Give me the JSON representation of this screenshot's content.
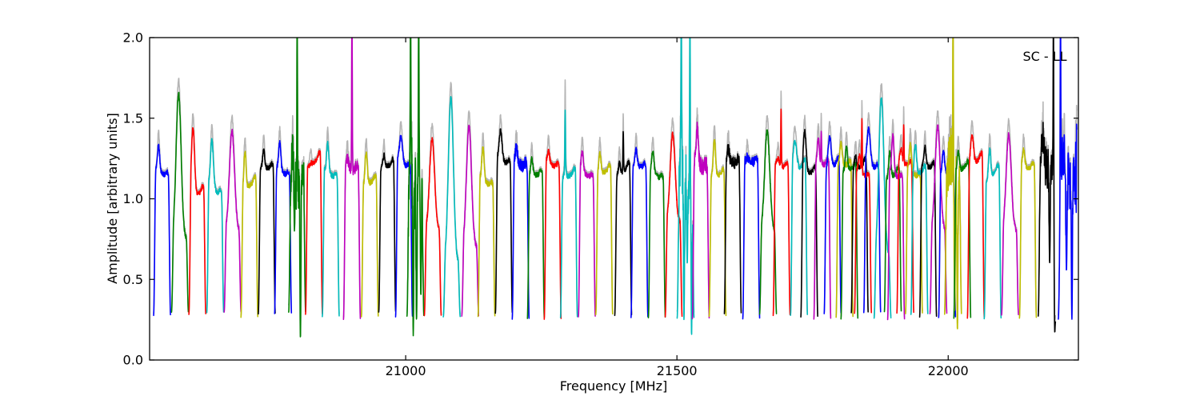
{
  "chart_data": {
    "type": "line",
    "title": "",
    "annotation": "SC - LL",
    "xlabel": "Frequency [MHz]",
    "ylabel": "Amplitude [arbitrary units]",
    "xlim": [
      20528,
      22240
    ],
    "ylim": [
      0.0,
      2.0
    ],
    "xticks": [
      21000,
      21500,
      22000
    ],
    "yticks": [
      0.0,
      0.5,
      1.0,
      1.5,
      2.0
    ],
    "grid": false,
    "legend": "none",
    "baseline_amplitude": 0.27,
    "colors": {
      "b": "#0000ff",
      "g": "#007f00",
      "r": "#ff0000",
      "c": "#00bcbc",
      "m": "#bf00bf",
      "y": "#bfbf00",
      "k": "#000000",
      "gray": "#b5b5b5"
    },
    "segments": [
      {
        "f": 20551,
        "c": "b",
        "pk": 1.32
      },
      {
        "f": 20584,
        "c": "g",
        "pk": 1.65,
        "tr": 1,
        "pl": 0.75
      },
      {
        "f": 20616,
        "c": "r",
        "pk": 1.47,
        "pw": 0.26,
        "pl": 1.02
      },
      {
        "f": 20649,
        "c": "c",
        "pk": 1.35,
        "pw": 0.24,
        "pl": 1.05
      },
      {
        "f": 20681,
        "c": "m",
        "pk": 1.42,
        "tr": 1,
        "pl": 0.8
      },
      {
        "f": 20712,
        "c": "y",
        "pk": 1.32,
        "pl": 1.08
      },
      {
        "f": 20744,
        "c": "k",
        "pk": 1.3
      },
      {
        "f": 20774,
        "c": "b",
        "pk": 1.33
      },
      {
        "f": 20800,
        "c": "g",
        "pk": 1.33,
        "pl": 1.12,
        "ns": 0.1,
        "sp": [
          {
            "d": 0,
            "a": 2.15
          }
        ],
        "dp": [
          {
            "d": 6,
            "a": 0.13
          },
          {
            "d": -5,
            "a": 0.8
          }
        ]
      },
      {
        "f": 20831,
        "c": "r",
        "pk": 1.24
      },
      {
        "f": 20862,
        "c": "c",
        "pk": 1.33
      },
      {
        "f": 20901,
        "c": "m",
        "pk": 1.25,
        "ns": 0.035,
        "sp": [
          {
            "d": 0,
            "a": 2.15
          }
        ]
      },
      {
        "f": 20934,
        "c": "y",
        "pk": 1.3,
        "pl": 1.1
      },
      {
        "f": 20966,
        "c": "k",
        "pk": 1.28
      },
      {
        "f": 20997,
        "c": "b",
        "pk": 1.37,
        "pw": 0.24
      },
      {
        "f": 21018,
        "c": "g",
        "pk": 1.28,
        "pl": 1.08,
        "ns": 0.13,
        "sp": [
          {
            "d": -9,
            "a": 2.15
          },
          {
            "d": 6,
            "a": 2.15
          }
        ],
        "dp": [
          {
            "d": -4,
            "a": 0.15
          },
          {
            "d": 2,
            "a": 0.25
          },
          {
            "d": 10,
            "a": 0.4
          }
        ]
      },
      {
        "f": 21050,
        "c": "r",
        "pk": 1.37,
        "tr": 1,
        "pl": 0.8
      },
      {
        "f": 21085,
        "c": "c",
        "pk": 1.63,
        "tr": 1,
        "pl": 0.6
      },
      {
        "f": 21119,
        "c": "m",
        "pk": 1.45,
        "tr": 1,
        "pl": 0.7
      },
      {
        "f": 21149,
        "c": "y",
        "pk": 1.3,
        "pl": 1.1
      },
      {
        "f": 21181,
        "c": "k",
        "pk": 1.41,
        "pw": 0.24
      },
      {
        "f": 21212,
        "c": "b",
        "pk": 1.3,
        "ns": 0.04
      },
      {
        "f": 21240,
        "c": "g",
        "pk": 1.25
      },
      {
        "f": 21271,
        "c": "r",
        "pk": 1.28
      },
      {
        "f": 21301,
        "c": "c",
        "pk": 1.2,
        "pl": 1.14,
        "sp": [
          {
            "d": -7,
            "a": 1.55
          }
        ]
      },
      {
        "f": 21334,
        "c": "m",
        "pk": 1.27
      },
      {
        "f": 21366,
        "c": "y",
        "pk": 1.3
      },
      {
        "f": 21401,
        "c": "k",
        "pk": 1.24,
        "pl": 1.17,
        "sp": [
          {
            "d": 0,
            "a": 1.42
          }
        ]
      },
      {
        "f": 21431,
        "c": "b",
        "pk": 1.3
      },
      {
        "f": 21463,
        "c": "g",
        "pk": 1.27
      },
      {
        "f": 21494,
        "c": "r",
        "pk": 1.4,
        "tr": 1,
        "pl": 0.85
      },
      {
        "f": 21516,
        "c": "c",
        "pk": 1.3,
        "pl": 1.08,
        "ns": 0.13,
        "sp": [
          {
            "d": -8,
            "a": 2.15
          },
          {
            "d": 8,
            "a": 2.15
          }
        ],
        "dp": [
          {
            "d": -3,
            "a": 0.25
          },
          {
            "d": 3,
            "a": 0.6
          },
          {
            "d": 11,
            "a": 0.15
          }
        ]
      },
      {
        "f": 21544,
        "c": "m",
        "pk": 1.42,
        "ns": 0.05
      },
      {
        "f": 21575,
        "c": "y",
        "pk": 1.38
      },
      {
        "f": 21603,
        "c": "k",
        "pk": 1.3,
        "ns": 0.035
      },
      {
        "f": 21637,
        "c": "b",
        "pk": 1.25,
        "ns": 0.03
      },
      {
        "f": 21668,
        "c": "g",
        "pk": 1.42,
        "tr": 1,
        "pl": 0.8
      },
      {
        "f": 21693,
        "c": "r",
        "pk": 1.24,
        "sp": [
          {
            "d": -1,
            "a": 1.56
          }
        ]
      },
      {
        "f": 21725,
        "c": "c",
        "pk": 1.38,
        "pw": 0.3
      },
      {
        "f": 21744,
        "c": "k",
        "pk": 1.42,
        "pw": 0.24
      },
      {
        "f": 21768,
        "c": "m",
        "pk": 1.37,
        "sp": [
          {
            "d": -2,
            "a": 1.42
          }
        ]
      },
      {
        "f": 21787,
        "c": "b",
        "pk": 1.4,
        "pw": 0.26
      },
      {
        "f": 21809,
        "c": "y",
        "pk": 1.35
      },
      {
        "f": 21818,
        "c": "g",
        "pk": 1.32
      },
      {
        "f": 21837,
        "c": "k",
        "pk": 1.28,
        "pl": 1.2
      },
      {
        "f": 21843,
        "c": "r",
        "pk": 1.25,
        "sp": [
          {
            "d": -2,
            "a": 1.5
          }
        ]
      },
      {
        "f": 21860,
        "c": "b",
        "pk": 1.42,
        "pw": 0.26
      },
      {
        "f": 21879,
        "c": "c",
        "pk": 1.62,
        "tr": 1,
        "pl": 0.65
      },
      {
        "f": 21898,
        "c": "g",
        "pk": 1.3
      },
      {
        "f": 21904,
        "c": "m",
        "pk": 1.38
      },
      {
        "f": 21921,
        "c": "r",
        "pk": 1.3,
        "sp": [
          {
            "d": -3,
            "a": 1.46
          }
        ]
      },
      {
        "f": 21937,
        "c": "y",
        "pk": 1.32
      },
      {
        "f": 21947,
        "c": "c",
        "pk": 1.35
      },
      {
        "f": 21963,
        "c": "k",
        "pk": 1.32
      },
      {
        "f": 21982,
        "c": "m",
        "pk": 1.45,
        "tr": 1,
        "pl": 0.8
      },
      {
        "f": 21998,
        "c": "b",
        "pk": 1.3
      },
      {
        "f": 22009,
        "c": "y",
        "pk": 1.3,
        "pl": 1.12,
        "ns": 0.13,
        "sp": [
          {
            "d": 0,
            "a": 2.15
          }
        ],
        "dp": [
          {
            "d": 3,
            "a": 0.3
          },
          {
            "d": 8,
            "a": 0.18
          }
        ]
      },
      {
        "f": 22026,
        "c": "g",
        "pk": 1.3
      },
      {
        "f": 22051,
        "c": "r",
        "pk": 1.42,
        "pw": 0.24
      },
      {
        "f": 22082,
        "c": "c",
        "pk": 1.32
      },
      {
        "f": 22114,
        "c": "m",
        "pk": 1.4,
        "tr": 1,
        "pl": 0.8
      },
      {
        "f": 22147,
        "c": "y",
        "pk": 1.3
      },
      {
        "f": 22182,
        "c": "k",
        "pk": 1.38,
        "ns": 0.07,
        "hw": 16,
        "sp": [
          {
            "d": 12,
            "a": 2.15
          }
        ],
        "dp": [
          {
            "d": 5,
            "a": 0.6
          },
          {
            "d": 14.5,
            "a": 0.17
          }
        ]
      },
      {
        "f": 22220,
        "c": "b",
        "pk": 1.32,
        "pl": 1.1,
        "ns": 0.1,
        "hw": 17,
        "sp": [
          {
            "d": -13,
            "a": 2.15
          },
          {
            "d": -6,
            "a": 1.4
          },
          {
            "d": 15,
            "a": 1.35
          },
          {
            "d": 16.8,
            "a": 1.5
          }
        ],
        "dp": [
          {
            "d": -2,
            "a": 0.55
          },
          {
            "d": 8,
            "a": 0.25
          }
        ]
      }
    ]
  }
}
